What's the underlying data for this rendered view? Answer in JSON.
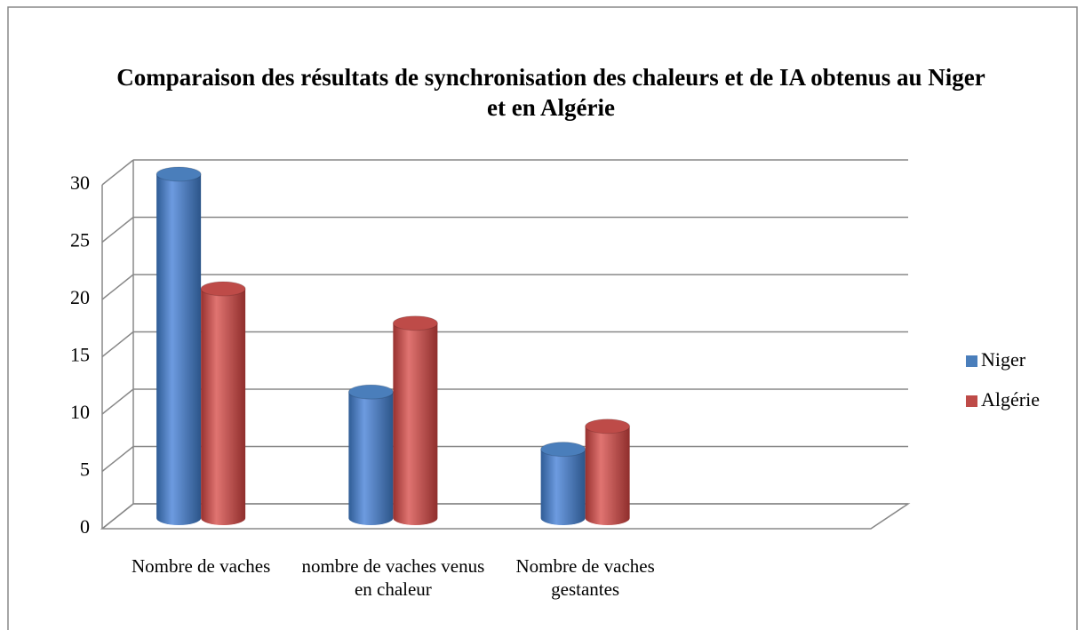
{
  "chart_data": {
    "type": "bar",
    "title": "Comparaison des résultats de synchronisation des chaleurs et de IA obtenus au Niger et en Algérie",
    "categories": [
      "Nombre de vaches",
      "nombre de vaches venus en chaleur",
      "Nombre de vaches gestantes",
      null
    ],
    "series": [
      {
        "name": "Niger",
        "color": "#4a7ebb",
        "values": [
          30,
          11,
          6,
          null
        ]
      },
      {
        "name": "Algérie",
        "color": "#be4b48",
        "values": [
          20,
          17,
          8,
          null
        ]
      }
    ],
    "ylim": [
      0,
      30
    ],
    "yticks": [
      0,
      5,
      10,
      15,
      20,
      25,
      30
    ],
    "grid": true,
    "legend": "right"
  }
}
